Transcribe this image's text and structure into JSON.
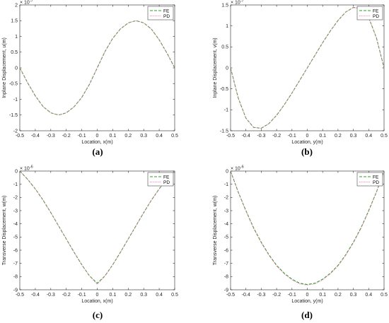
{
  "chart_data": [
    {
      "type": "line",
      "panel_label": "(a)",
      "xlabel": "Location, x(m)",
      "ylabel": "Inplane Displacement, u(m)",
      "exponent_label": "× 10",
      "exponent_power": "-7",
      "xlim": [
        -0.5,
        0.5
      ],
      "ylim": [
        -2,
        2
      ],
      "xticks": [
        "-0.5",
        "-0.4",
        "-0.3",
        "-0.2",
        "-0.1",
        "0",
        "0.1",
        "0.2",
        "0.3",
        "0.4",
        "0.5"
      ],
      "yticks": [
        "-2",
        "-1.5",
        "-1",
        "-0.5",
        "0",
        "0.5",
        "1",
        "1.5",
        "2"
      ],
      "legend": [
        "FE",
        "PD"
      ],
      "legend_position": "top-right",
      "x": [
        -0.5,
        -0.45,
        -0.4,
        -0.35,
        -0.3,
        -0.25,
        -0.2,
        -0.15,
        -0.1,
        -0.05,
        0,
        0.05,
        0.1,
        0.15,
        0.2,
        0.25,
        0.3,
        0.35,
        0.4,
        0.45,
        0.5
      ],
      "series": [
        {
          "name": "FE",
          "color": "#2ca02c",
          "style": "dash",
          "values": [
            0,
            -0.47,
            -0.89,
            -1.23,
            -1.43,
            -1.5,
            -1.43,
            -1.24,
            -0.94,
            -0.52,
            0,
            0.52,
            0.94,
            1.24,
            1.43,
            1.5,
            1.43,
            1.23,
            0.89,
            0.47,
            0
          ]
        },
        {
          "name": "PD",
          "color": "#ff69b4",
          "style": "dot",
          "values": [
            0,
            -0.47,
            -0.89,
            -1.23,
            -1.43,
            -1.5,
            -1.43,
            -1.24,
            -0.94,
            -0.52,
            0,
            0.52,
            0.94,
            1.24,
            1.43,
            1.5,
            1.43,
            1.23,
            0.89,
            0.47,
            0
          ]
        }
      ]
    },
    {
      "type": "line",
      "panel_label": "(b)",
      "xlabel": "Location, y(m)",
      "ylabel": "Inplane Displacement, v(m)",
      "exponent_label": "× 10",
      "exponent_power": "-7",
      "xlim": [
        -0.5,
        0.5
      ],
      "ylim": [
        -1.5,
        1.5
      ],
      "xticks": [
        "-0.5",
        "-0.4",
        "-0.3",
        "-0.2",
        "-0.1",
        "0",
        "0.1",
        "0.2",
        "0.3",
        "0.4",
        "0.5"
      ],
      "yticks": [
        "-1.5",
        "-1",
        "-0.5",
        "0",
        "0.5",
        "1",
        "1.5"
      ],
      "legend": [
        "FE",
        "PD"
      ],
      "legend_position": "top-right",
      "x": [
        -0.5,
        -0.45,
        -0.4,
        -0.35,
        -0.3,
        -0.25,
        -0.2,
        -0.15,
        -0.1,
        -0.05,
        0,
        0.05,
        0.1,
        0.15,
        0.2,
        0.25,
        0.3,
        0.35,
        0.4,
        0.45,
        0.5
      ],
      "series": [
        {
          "name": "FE",
          "color": "#2ca02c",
          "style": "dash",
          "values": [
            0,
            -0.72,
            -1.2,
            -1.42,
            -1.44,
            -1.33,
            -1.13,
            -0.88,
            -0.6,
            -0.3,
            0,
            0.3,
            0.6,
            0.88,
            1.13,
            1.33,
            1.44,
            1.42,
            1.2,
            0.72,
            0
          ]
        },
        {
          "name": "PD",
          "color": "#ff69b4",
          "style": "dot",
          "values": [
            0,
            -0.72,
            -1.2,
            -1.42,
            -1.44,
            -1.33,
            -1.13,
            -0.88,
            -0.6,
            -0.3,
            0,
            0.3,
            0.6,
            0.88,
            1.13,
            1.33,
            1.44,
            1.42,
            1.2,
            0.72,
            0
          ]
        }
      ]
    },
    {
      "type": "line",
      "panel_label": "(c)",
      "xlabel": "Location, x(m)",
      "ylabel": "Transverse Displacement, w(m)",
      "exponent_label": "× 10",
      "exponent_power": "-6",
      "xlim": [
        -0.5,
        0.5
      ],
      "ylim": [
        -9,
        0
      ],
      "xticks": [
        "-0.5",
        "-0.4",
        "-0.3",
        "-0.2",
        "-0.1",
        "0",
        "0.1",
        "0.2",
        "0.3",
        "0.4",
        "0.5"
      ],
      "yticks": [
        "-9",
        "-8",
        "-7",
        "-6",
        "-5",
        "-4",
        "-3",
        "-2",
        "-1",
        "0"
      ],
      "legend": [
        "FE",
        "PD"
      ],
      "legend_position": "top-right",
      "x": [
        -0.5,
        -0.45,
        -0.4,
        -0.35,
        -0.3,
        -0.25,
        -0.2,
        -0.15,
        -0.1,
        -0.05,
        0,
        0.05,
        0.1,
        0.15,
        0.2,
        0.25,
        0.3,
        0.35,
        0.4,
        0.45,
        0.5
      ],
      "series": [
        {
          "name": "FE",
          "color": "#2ca02c",
          "style": "dash",
          "values": [
            0,
            -0.62,
            -1.35,
            -2.2,
            -3.15,
            -4.15,
            -5.15,
            -6.15,
            -7.1,
            -7.95,
            -8.5,
            -7.95,
            -7.1,
            -6.15,
            -5.15,
            -4.15,
            -3.15,
            -2.2,
            -1.35,
            -0.62,
            0
          ]
        },
        {
          "name": "PD",
          "color": "#ff69b4",
          "style": "dot",
          "values": [
            0,
            -0.62,
            -1.35,
            -2.2,
            -3.15,
            -4.15,
            -5.15,
            -6.15,
            -7.1,
            -7.95,
            -8.6,
            -7.95,
            -7.1,
            -6.15,
            -5.15,
            -4.15,
            -3.15,
            -2.2,
            -1.35,
            -0.62,
            0
          ]
        }
      ]
    },
    {
      "type": "line",
      "panel_label": "(d)",
      "xlabel": "Location, y(m)",
      "ylabel": "Transverse Displacement, w(m)",
      "exponent_label": "× 10",
      "exponent_power": "-6",
      "xlim": [
        -0.5,
        0.5
      ],
      "ylim": [
        -9,
        0
      ],
      "xticks": [
        "-0.5",
        "-0.4",
        "-0.3",
        "-0.2",
        "-0.1",
        "0",
        "0.1",
        "0.2",
        "0.3",
        "0.4",
        "0.5"
      ],
      "yticks": [
        "-9",
        "-8",
        "-7",
        "-6",
        "-5",
        "-4",
        "-3",
        "-2",
        "-1",
        "0"
      ],
      "legend": [
        "FE",
        "PD"
      ],
      "legend_position": "top-right",
      "x": [
        -0.5,
        -0.45,
        -0.4,
        -0.35,
        -0.3,
        -0.25,
        -0.2,
        -0.15,
        -0.1,
        -0.05,
        0,
        0.05,
        0.1,
        0.15,
        0.2,
        0.25,
        0.3,
        0.35,
        0.4,
        0.45,
        0.5
      ],
      "series": [
        {
          "name": "FE",
          "color": "#2ca02c",
          "style": "dash",
          "values": [
            0,
            -1.6,
            -3.0,
            -4.3,
            -5.4,
            -6.35,
            -7.15,
            -7.75,
            -8.2,
            -8.5,
            -8.6,
            -8.5,
            -8.2,
            -7.75,
            -7.15,
            -6.35,
            -5.4,
            -4.3,
            -3.0,
            -1.6,
            0
          ]
        },
        {
          "name": "PD",
          "color": "#ff69b4",
          "style": "dot",
          "values": [
            0,
            -1.6,
            -3.05,
            -4.35,
            -5.45,
            -6.4,
            -7.2,
            -7.8,
            -8.25,
            -8.55,
            -8.65,
            -8.55,
            -8.25,
            -7.8,
            -7.2,
            -6.4,
            -5.45,
            -4.35,
            -3.05,
            -1.6,
            0
          ]
        }
      ]
    }
  ]
}
